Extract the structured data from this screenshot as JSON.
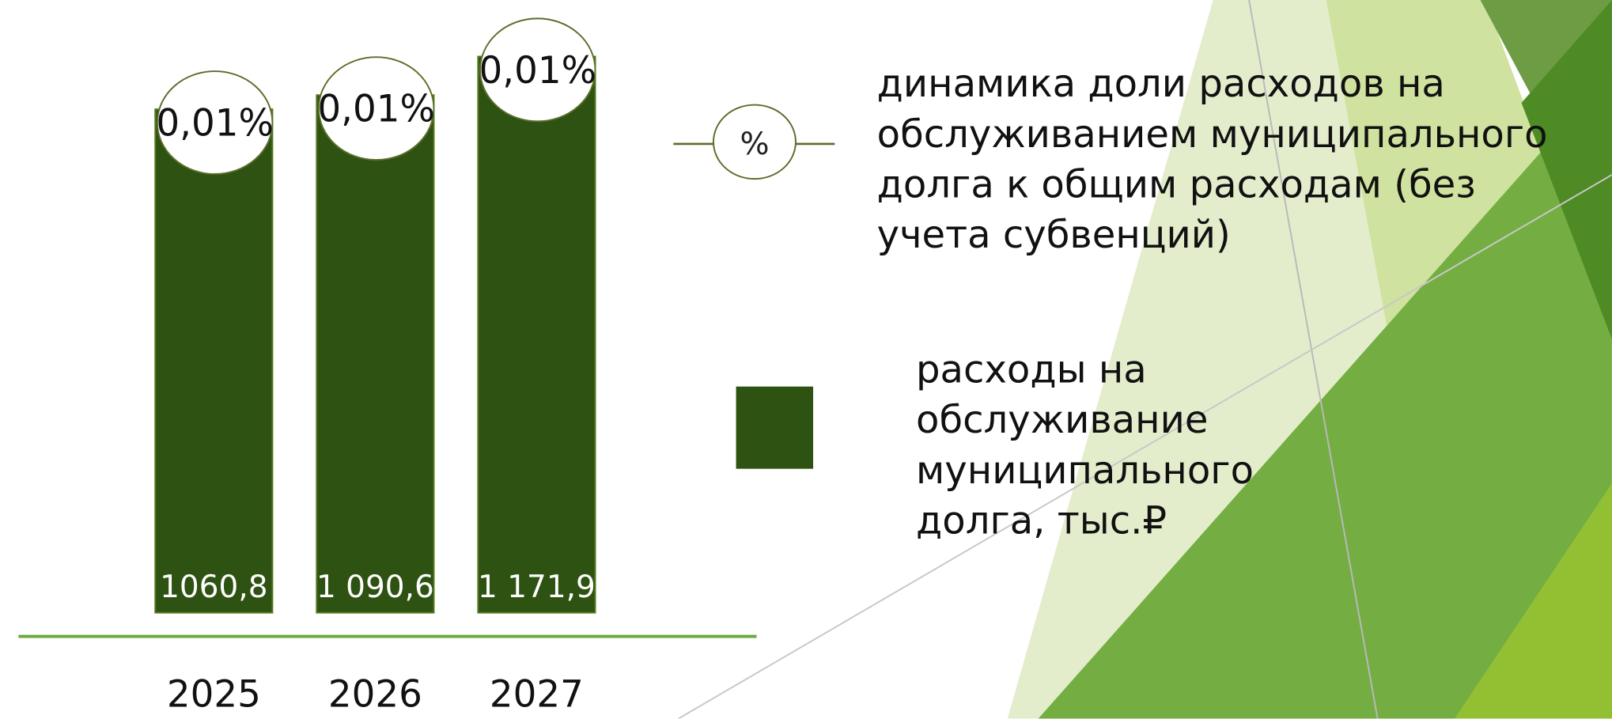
{
  "chart_data": {
    "type": "bar",
    "categories": [
      "2025",
      "2026",
      "2027"
    ],
    "series": [
      {
        "name": "расходы на обслуживание муниципального долга, тыс.₽",
        "color": "#2e5212",
        "values": [
          1060.8,
          1090.6,
          1171.9
        ],
        "value_labels": [
          "1060,8",
          "1 090,6",
          "1 171,9"
        ]
      },
      {
        "name": "динамика доли расходов на обслуживанием муниципального долга к общим расходам (без учета субвенций)",
        "type": "line",
        "marker_label": "%",
        "color": "#5a6e2a",
        "values": [
          0.01,
          0.01,
          0.01
        ],
        "value_labels": [
          "0,01%",
          "0,01%",
          "0,01%"
        ]
      }
    ]
  }
}
